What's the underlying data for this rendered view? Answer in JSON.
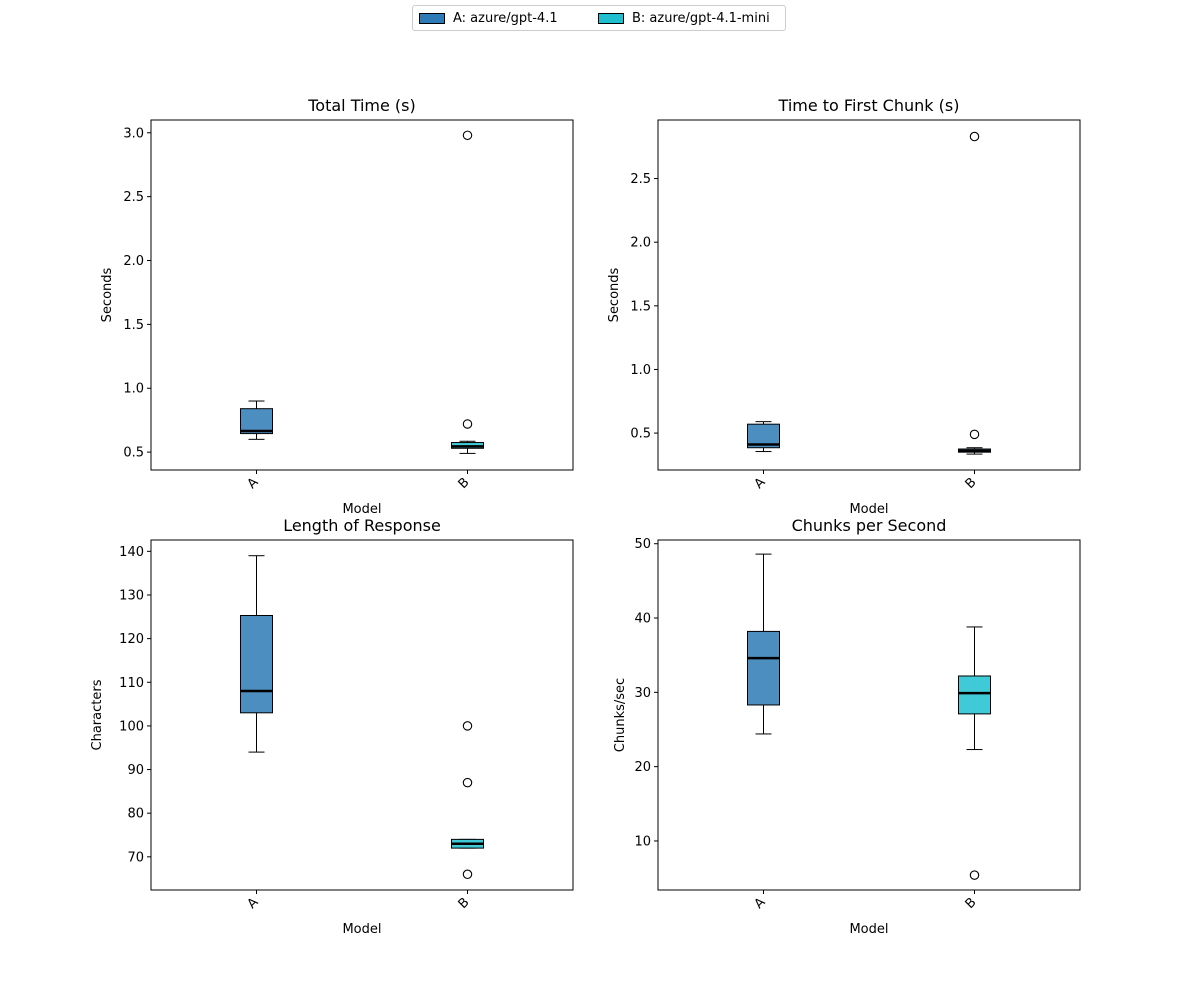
{
  "legend": {
    "items": [
      {
        "label": "A: azure/gpt-4.1",
        "color": "#2e7ab6"
      },
      {
        "label": "B: azure/gpt-4.1-mini",
        "color": "#1fbfd0"
      }
    ]
  },
  "chart_data": [
    {
      "type": "box",
      "title": "Total Time (s)",
      "xlabel": "Model",
      "ylabel": "Seconds",
      "categories": [
        "A",
        "B"
      ],
      "ylim": [
        0.36,
        3.1
      ],
      "yticks": [
        0.5,
        1.0,
        1.5,
        2.0,
        2.5,
        3.0
      ],
      "ytick_labels": [
        "0.5",
        "1.0",
        "1.5",
        "2.0",
        "2.5",
        "3.0"
      ],
      "boxes": [
        {
          "whislo": 0.6,
          "q1": 0.645,
          "med": 0.665,
          "q3": 0.84,
          "whishi": 0.9,
          "fliers": []
        },
        {
          "whislo": 0.49,
          "q1": 0.53,
          "med": 0.545,
          "q3": 0.575,
          "whishi": 0.585,
          "fliers": [
            0.72,
            2.98
          ]
        }
      ]
    },
    {
      "type": "box",
      "title": "Time to First Chunk (s)",
      "xlabel": "Model",
      "ylabel": "Seconds",
      "categories": [
        "A",
        "B"
      ],
      "ylim": [
        0.21,
        2.96
      ],
      "yticks": [
        0.5,
        1.0,
        1.5,
        2.0,
        2.5
      ],
      "ytick_labels": [
        "0.5",
        "1.0",
        "1.5",
        "2.0",
        "2.5"
      ],
      "boxes": [
        {
          "whislo": 0.355,
          "q1": 0.385,
          "med": 0.41,
          "q3": 0.57,
          "whishi": 0.59,
          "fliers": []
        },
        {
          "whislo": 0.335,
          "q1": 0.35,
          "med": 0.36,
          "q3": 0.375,
          "whishi": 0.385,
          "fliers": [
            0.49,
            2.83
          ]
        }
      ]
    },
    {
      "type": "box",
      "title": "Length of Response",
      "xlabel": "Model",
      "ylabel": "Characters",
      "categories": [
        "A",
        "B"
      ],
      "ylim": [
        62.4,
        142.6
      ],
      "yticks": [
        70,
        80,
        90,
        100,
        110,
        120,
        130,
        140
      ],
      "ytick_labels": [
        "70",
        "80",
        "90",
        "100",
        "110",
        "120",
        "130",
        "140"
      ],
      "boxes": [
        {
          "whislo": 94,
          "q1": 103,
          "med": 108,
          "q3": 125.3,
          "whishi": 139,
          "fliers": []
        },
        {
          "whislo": 72,
          "q1": 72,
          "med": 73,
          "q3": 74,
          "whishi": 74,
          "fliers": [
            66,
            87,
            100
          ]
        }
      ]
    },
    {
      "type": "box",
      "title": "Chunks per Second",
      "xlabel": "Model",
      "ylabel": "Chunks/sec",
      "categories": [
        "A",
        "B"
      ],
      "ylim": [
        3.4,
        50.5
      ],
      "yticks": [
        10,
        20,
        30,
        40,
        50
      ],
      "ytick_labels": [
        "10",
        "20",
        "30",
        "40",
        "50"
      ],
      "boxes": [
        {
          "whislo": 24.4,
          "q1": 28.3,
          "med": 34.6,
          "q3": 38.2,
          "whishi": 48.6,
          "fliers": []
        },
        {
          "whislo": 22.3,
          "q1": 27.1,
          "med": 29.9,
          "q3": 32.2,
          "whishi": 38.8,
          "fliers": [
            5.4
          ]
        }
      ]
    }
  ]
}
